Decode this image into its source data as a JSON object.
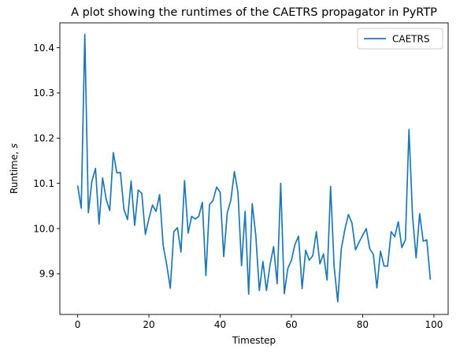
{
  "chart_data": {
    "type": "line",
    "title": "A plot showing the runtimes of the CAETRS propagator in PyRTP",
    "xlabel": "Timestep",
    "ylabel": "Runtime, s",
    "xlim": [
      -5,
      104
    ],
    "ylim": [
      9.81,
      10.455
    ],
    "xticks": [
      0,
      20,
      40,
      60,
      80,
      100
    ],
    "yticks": [
      9.9,
      10.0,
      10.1,
      10.2,
      10.3,
      10.4
    ],
    "ytick_labels": [
      "9.9",
      "10.0",
      "10.1",
      "10.2",
      "10.3",
      "10.4"
    ],
    "grid": false,
    "legend": "top-right",
    "colors": {
      "line": "#1f77b4",
      "axes": "#000000",
      "background": "#ffffff",
      "legend_border": "#cccccc"
    },
    "series": [
      {
        "name": "CAETRS",
        "x": [
          0,
          1,
          2,
          3,
          4,
          5,
          6,
          7,
          8,
          9,
          10,
          11,
          12,
          13,
          14,
          15,
          16,
          17,
          18,
          19,
          20,
          21,
          22,
          23,
          24,
          25,
          26,
          27,
          28,
          29,
          30,
          31,
          32,
          33,
          34,
          35,
          36,
          37,
          38,
          39,
          40,
          41,
          42,
          43,
          44,
          45,
          46,
          47,
          48,
          49,
          50,
          51,
          52,
          53,
          54,
          55,
          56,
          57,
          58,
          59,
          60,
          61,
          62,
          63,
          64,
          65,
          66,
          67,
          68,
          69,
          70,
          71,
          72,
          73,
          74,
          75,
          76,
          77,
          78,
          79,
          80,
          81,
          82,
          83,
          84,
          85,
          86,
          87,
          88,
          89,
          90,
          91,
          92,
          93,
          94,
          95,
          96,
          97,
          98,
          99
        ],
        "values": [
          10.095,
          10.045,
          10.43,
          10.035,
          10.105,
          10.133,
          10.01,
          10.112,
          10.065,
          10.04,
          10.168,
          10.123,
          10.124,
          10.042,
          10.02,
          10.105,
          10.007,
          10.085,
          10.078,
          9.987,
          10.022,
          10.052,
          10.038,
          10.075,
          9.963,
          9.92,
          9.868,
          9.993,
          10.002,
          9.948,
          10.106,
          9.99,
          10.027,
          10.021,
          10.027,
          10.058,
          9.896,
          10.053,
          10.062,
          10.092,
          10.08,
          9.938,
          10.035,
          10.063,
          10.126,
          10.08,
          9.918,
          10.038,
          9.855,
          10.055,
          9.985,
          9.863,
          9.927,
          9.863,
          9.92,
          9.96,
          9.878,
          10.1,
          9.856,
          9.912,
          9.93,
          9.965,
          9.983,
          9.867,
          9.952,
          9.93,
          9.94,
          9.993,
          9.922,
          9.944,
          9.886,
          10.093,
          9.915,
          9.838,
          9.955,
          9.998,
          10.031,
          10.012,
          9.953,
          9.97,
          9.985,
          10.0,
          9.955,
          9.943,
          9.869,
          9.95,
          9.917,
          9.917,
          9.993,
          9.982,
          10.015,
          9.958,
          9.975,
          10.219,
          10.028,
          9.935,
          10.033,
          9.972,
          9.975,
          9.887
        ]
      }
    ]
  }
}
